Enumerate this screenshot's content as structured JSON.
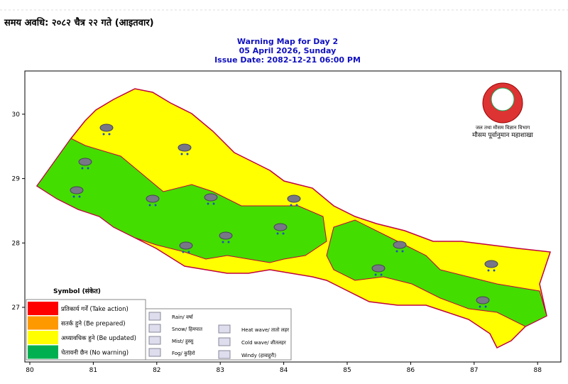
{
  "header": {
    "period": "समय अवधि: २०८२ चैत्र २२ गते (आइतवार)"
  },
  "map": {
    "title": [
      "Warning Map for Day 2",
      "05 April 2026, Sunday",
      "Issue Date: 2082-12-21 06:00 PM"
    ],
    "xticks": [
      80,
      81,
      82,
      83,
      84,
      85,
      86,
      87,
      88
    ],
    "yticks": [
      27,
      28,
      29,
      30
    ],
    "logo": [
      "जल तथा मौसम विज्ञान विभाग",
      "मौसम पूर्वानुमान महाशाखा"
    ],
    "legend": {
      "title": "Symbol (संकेत)",
      "levels": [
        {
          "label": "प्रतिकार्य गर्नें (Take action)",
          "color": "#ff0000"
        },
        {
          "label": "सतर्क हुने (Be prepared)",
          "color": "#ff9900"
        },
        {
          "label": "अध्यावधिक हुने (Be updated)",
          "color": "#ffff00"
        },
        {
          "label": "चेतावनी छैन (No warning)",
          "color": "#00b050"
        }
      ],
      "symbols": [
        "Rain/ वर्षा",
        "Snow/ हिमपात",
        "Mist/ हुस्सु",
        "Fog/ कुहिरो",
        "Heat wave/ तातो लहर",
        "Cold wave/ शीतलहर",
        "Windy (हावाहुरी)"
      ]
    }
  }
}
